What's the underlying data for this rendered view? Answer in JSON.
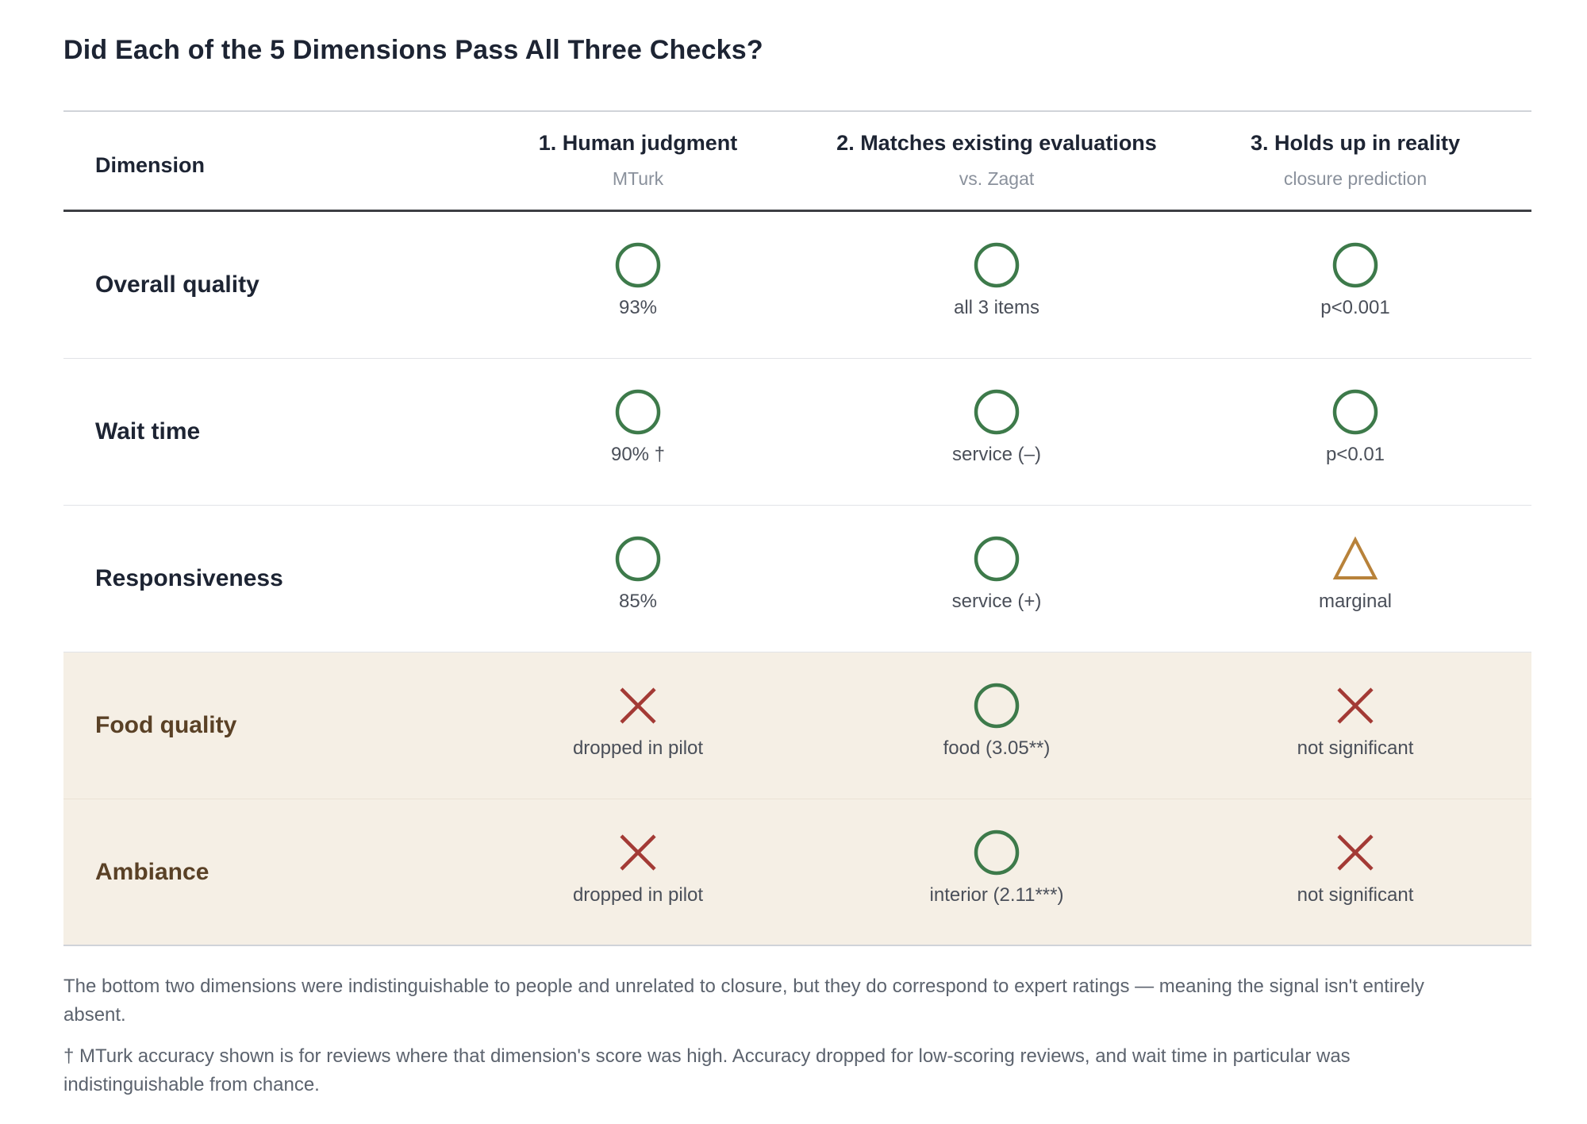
{
  "title": "Did Each of the 5 Dimensions Pass All Three Checks?",
  "header": {
    "dimension": "Dimension",
    "columns": [
      {
        "label": "1. Human judgment",
        "sub": "MTurk"
      },
      {
        "label": "2. Matches existing evaluations",
        "sub": "vs. Zagat"
      },
      {
        "label": "3. Holds up in reality",
        "sub": "closure prediction"
      }
    ]
  },
  "rows": [
    {
      "dimension": "Overall quality",
      "highlight": false,
      "cells": [
        {
          "mark": "pass-circle",
          "note": "93%"
        },
        {
          "mark": "pass-circle",
          "note": "all 3 items"
        },
        {
          "mark": "pass-circle",
          "note": "p<0.001"
        }
      ]
    },
    {
      "dimension": "Wait time",
      "highlight": false,
      "cells": [
        {
          "mark": "pass-circle",
          "note": "90% †"
        },
        {
          "mark": "pass-circle",
          "note": "service (–)"
        },
        {
          "mark": "pass-circle",
          "note": "p<0.01"
        }
      ]
    },
    {
      "dimension": "Responsiveness",
      "highlight": false,
      "cells": [
        {
          "mark": "pass-circle",
          "note": "85%"
        },
        {
          "mark": "pass-circle",
          "note": "service (+)"
        },
        {
          "mark": "marginal-triangle",
          "note": "marginal"
        }
      ]
    },
    {
      "dimension": "Food quality",
      "highlight": true,
      "cells": [
        {
          "mark": "fail-cross",
          "note": "dropped in pilot"
        },
        {
          "mark": "pass-circle",
          "note": "food (3.05**)"
        },
        {
          "mark": "fail-cross",
          "note": "not significant"
        }
      ]
    },
    {
      "dimension": "Ambiance",
      "highlight": true,
      "cells": [
        {
          "mark": "fail-cross",
          "note": "dropped in pilot"
        },
        {
          "mark": "pass-circle",
          "note": "interior (2.11***)"
        },
        {
          "mark": "fail-cross",
          "note": "not significant"
        }
      ]
    }
  ],
  "notes": [
    "The bottom two dimensions were indistinguishable to people and unrelated to closure, but they do correspond to expert ratings — meaning the signal isn't entirely absent.",
    "† MTurk accuracy shown is for reviews where that dimension's score was high. Accuracy dropped for low-scoring reviews, and wait time in particular was indistinguishable from chance."
  ],
  "colors": {
    "pass": "#3d7a4a",
    "fail": "#a33a35",
    "marginal": "#b8823a",
    "highlight_bg": "#f5efe5"
  }
}
